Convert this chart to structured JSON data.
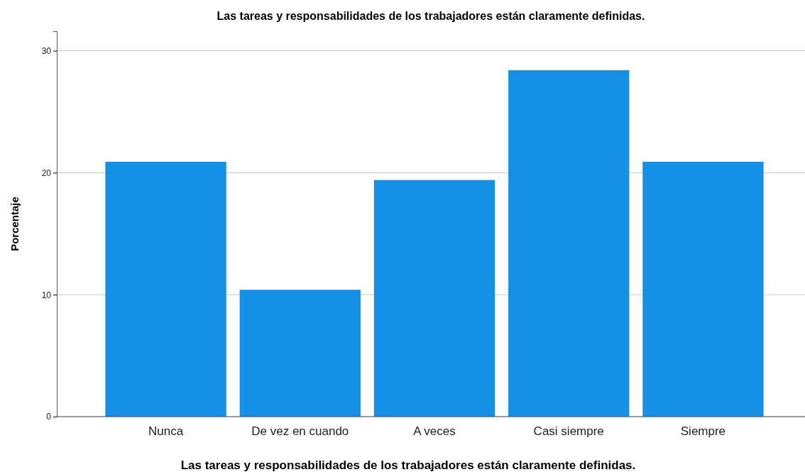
{
  "chart_data": {
    "type": "bar",
    "title": "Las tareas y responsabilidades de los trabajadores están claramente definidas.",
    "xlabel": "Las tareas y responsabilidades de los trabajadores están claramente definidas.",
    "ylabel": "Porcentaje",
    "categories": [
      "Nunca",
      "De vez en cuando",
      "A veces",
      "Casi siempre",
      "Siempre"
    ],
    "values": [
      20.9,
      10.4,
      19.4,
      28.4,
      20.9
    ],
    "color": "#1490e6",
    "ylim": [
      0,
      31.6
    ],
    "yticks": [
      0,
      10,
      20,
      30
    ],
    "grid": "y"
  }
}
